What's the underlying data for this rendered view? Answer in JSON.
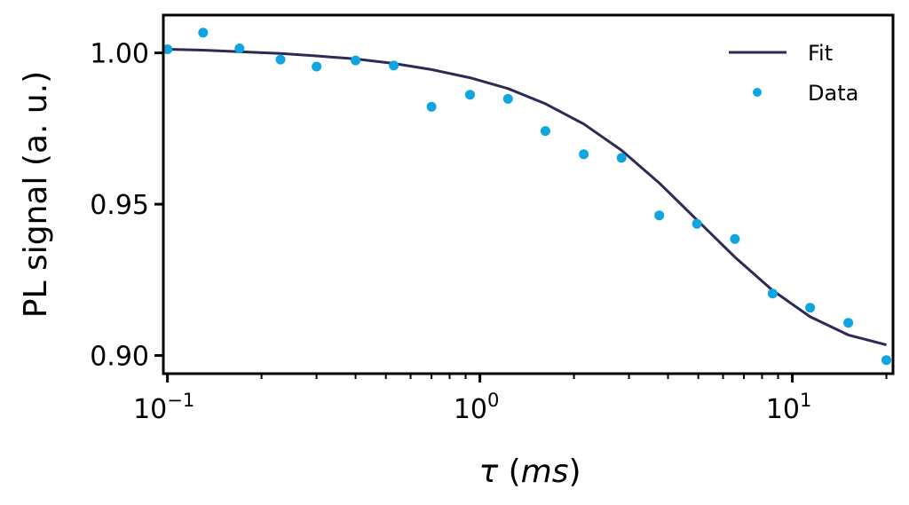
{
  "chart_data": {
    "type": "scatter",
    "title": "",
    "xlabel": "τ (ms)",
    "ylabel": "PL signal (a. u.)",
    "xscale": "log",
    "xlim": [
      0.097,
      21
    ],
    "ylim": [
      0.894,
      1.0125
    ],
    "grid": false,
    "legend_position": "top-right",
    "x_ticks": [
      {
        "value": 0.1,
        "base": "10",
        "exp": "−1"
      },
      {
        "value": 1,
        "base": "10",
        "exp": "0"
      },
      {
        "value": 10,
        "base": "10",
        "exp": "1"
      }
    ],
    "y_ticks": [
      {
        "value": 0.9,
        "label": "0.90"
      },
      {
        "value": 0.95,
        "label": "0.95"
      },
      {
        "value": 1.0,
        "label": "1.00"
      }
    ],
    "series": [
      {
        "name": "Fit",
        "kind": "line",
        "color": "#2b2b55",
        "x": [
          0.1,
          0.13,
          0.17,
          0.23,
          0.3,
          0.4,
          0.53,
          0.7,
          0.93,
          1.23,
          1.62,
          2.15,
          2.84,
          3.75,
          4.95,
          6.55,
          8.65,
          11.4,
          15.1,
          20.0
        ],
        "y": [
          1.0012,
          1.0009,
          1.0004,
          0.9998,
          0.999,
          0.998,
          0.9965,
          0.9945,
          0.9918,
          0.9882,
          0.9832,
          0.9765,
          0.9678,
          0.957,
          0.9448,
          0.9325,
          0.9215,
          0.9128,
          0.9068,
          0.9035
        ]
      },
      {
        "name": "Data",
        "kind": "scatter",
        "color": "#0ea5e0",
        "x": [
          0.1,
          0.13,
          0.17,
          0.23,
          0.3,
          0.4,
          0.53,
          0.7,
          0.93,
          1.23,
          1.62,
          2.15,
          2.84,
          3.75,
          4.95,
          6.55,
          8.65,
          11.4,
          15.1,
          20.0
        ],
        "y": [
          1.0012,
          1.0067,
          1.0015,
          0.9978,
          0.9955,
          0.9975,
          0.9958,
          0.9822,
          0.9862,
          0.9848,
          0.9742,
          0.9665,
          0.9653,
          0.9463,
          0.9435,
          0.9385,
          0.9205,
          0.9158,
          0.9108,
          0.8985
        ]
      }
    ]
  }
}
